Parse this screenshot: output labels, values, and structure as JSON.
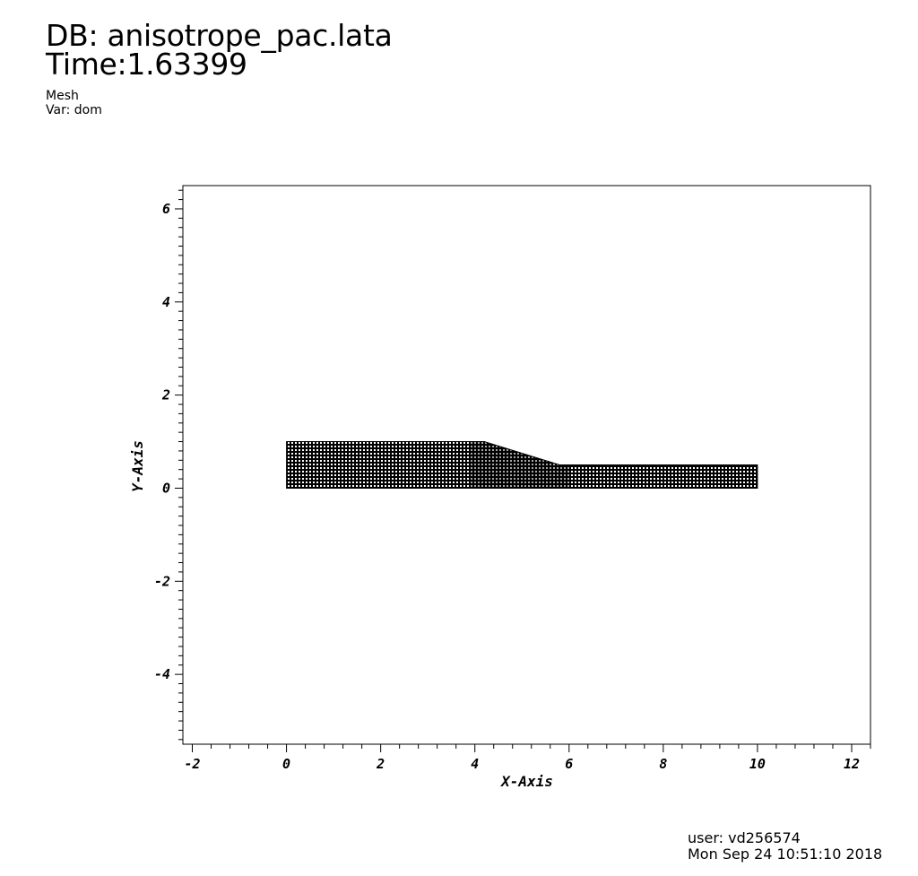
{
  "header": {
    "db": "DB: anisotrope_pac.lata",
    "time": "Time:1.63399",
    "plot_type": "Mesh",
    "variable": "Var: dom"
  },
  "footer": {
    "user": "user: vd256574",
    "date": "Mon Sep 24 10:51:10 2018"
  },
  "chart_data": {
    "type": "mesh",
    "xlabel": "X-Axis",
    "ylabel": "Y-Axis",
    "xlim": [
      -2.2,
      12.4
    ],
    "ylim": [
      -5.5,
      6.5
    ],
    "x_ticks": [
      -2,
      0,
      2,
      4,
      6,
      8,
      10,
      12
    ],
    "x_tick_labels": [
      "-2",
      "0",
      "2",
      "4",
      "6",
      "8",
      "10",
      "12"
    ],
    "y_ticks": [
      -4,
      -2,
      0,
      2,
      4,
      6
    ],
    "y_tick_labels": [
      "-4",
      "-2",
      "0",
      "2",
      "4",
      "6"
    ],
    "x_minor_step": 0.4,
    "y_minor_step": 0.2,
    "domain_outline": [
      [
        0,
        0
      ],
      [
        0,
        1
      ],
      [
        4.2,
        1
      ],
      [
        5.8,
        0.5
      ],
      [
        10,
        0.5
      ],
      [
        10,
        0
      ]
    ],
    "mesh_color": "#000000",
    "background": "#ffffff"
  }
}
